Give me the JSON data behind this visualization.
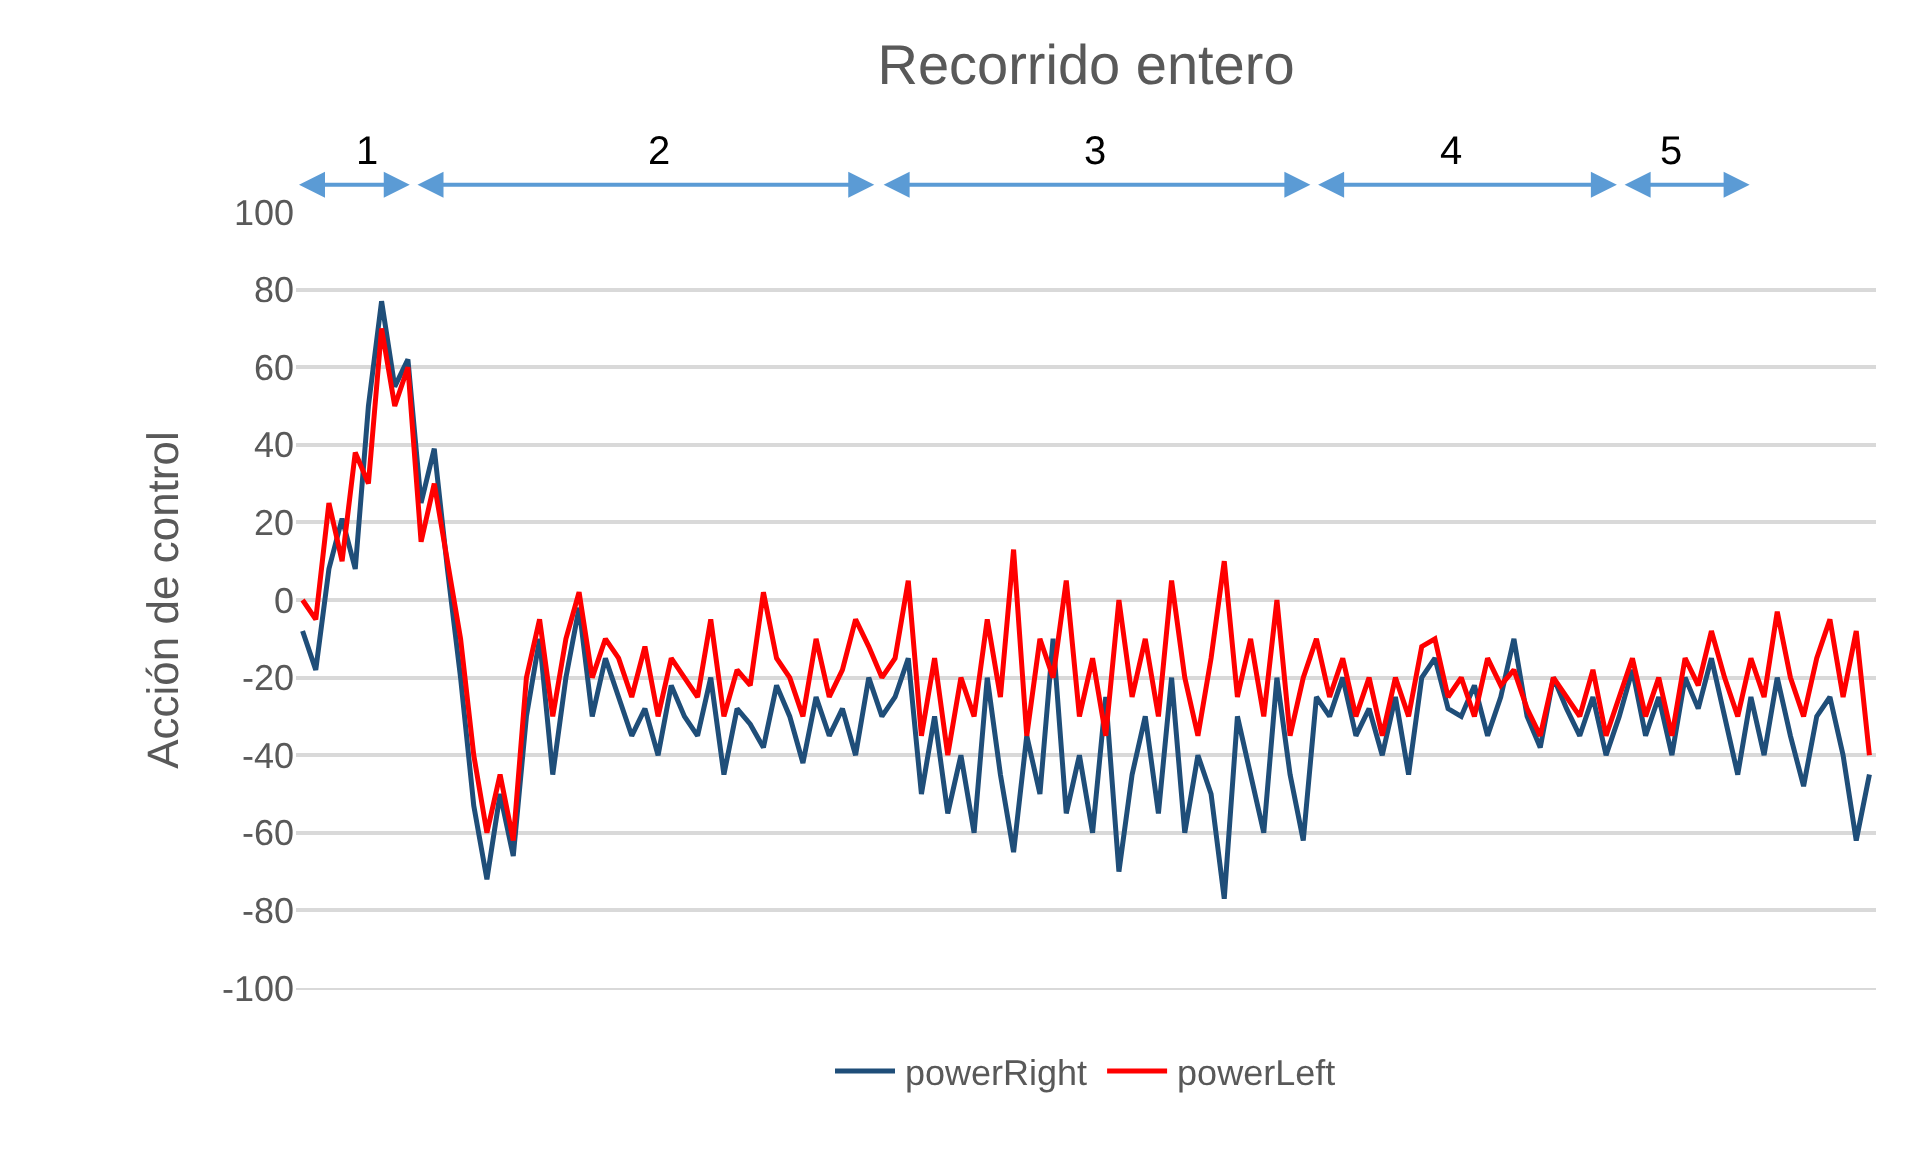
{
  "chart_data": {
    "type": "line",
    "title": "Recorrido entero",
    "ylabel": "Acción de control",
    "categories": [
      null,
      null,
      null,
      null,
      null,
      null,
      null,
      null,
      null,
      null,
      null,
      null,
      null,
      null,
      null,
      null,
      null,
      null,
      null,
      null,
      null,
      null,
      null,
      null,
      null,
      null,
      null,
      null,
      null,
      null,
      null,
      null,
      null,
      null,
      null,
      null,
      null,
      null,
      null,
      null,
      null,
      null,
      null,
      null,
      null,
      null,
      null,
      null,
      null,
      null,
      null,
      null,
      null,
      null,
      null,
      null,
      null,
      null,
      null,
      null,
      null,
      null,
      null,
      null,
      null,
      null,
      null,
      null,
      null,
      null,
      null,
      null,
      null,
      null,
      null,
      null,
      null,
      null,
      null,
      null,
      null,
      null,
      null,
      null,
      null,
      null,
      null,
      null,
      null,
      null,
      null,
      null,
      null,
      null,
      null,
      null,
      null,
      null,
      null,
      null,
      null,
      null,
      null,
      null,
      null,
      null,
      null,
      null,
      null,
      null,
      null,
      null,
      null,
      null,
      null,
      null,
      null,
      null,
      null,
      null
    ],
    "series": [
      {
        "name": "powerRight",
        "color": "#1f4e79",
        "values": [
          -8,
          -18,
          8,
          21,
          8,
          50,
          77,
          55,
          62,
          25,
          39,
          8,
          -20,
          -53,
          -72,
          -50,
          -66,
          -30,
          -10,
          -45,
          -20,
          -2,
          -30,
          -15,
          -25,
          -35,
          -28,
          -40,
          -22,
          -30,
          -35,
          -20,
          -45,
          -28,
          -32,
          -38,
          -22,
          -30,
          -42,
          -25,
          -35,
          -28,
          -40,
          -20,
          -30,
          -25,
          -15,
          -50,
          -30,
          -55,
          -40,
          -60,
          -20,
          -45,
          -65,
          -35,
          -50,
          -10,
          -55,
          -40,
          -60,
          -25,
          -70,
          -45,
          -30,
          -55,
          -20,
          -60,
          -40,
          -50,
          -77,
          -30,
          -45,
          -60,
          -20,
          -45,
          -62,
          -25,
          -30,
          -20,
          -35,
          -28,
          -40,
          -25,
          -45,
          -20,
          -15,
          -28,
          -30,
          -22,
          -35,
          -25,
          -10,
          -30,
          -38,
          -20,
          -28,
          -35,
          -25,
          -40,
          -30,
          -18,
          -35,
          -25,
          -40,
          -20,
          -28,
          -15,
          -30,
          -45,
          -25,
          -40,
          -20,
          -35,
          -48,
          -30,
          -25,
          -40,
          -62,
          -45
        ]
      },
      {
        "name": "powerLeft",
        "color": "#ff0000",
        "values": [
          0,
          -5,
          25,
          10,
          38,
          30,
          70,
          50,
          60,
          15,
          30,
          10,
          -10,
          -40,
          -60,
          -45,
          -62,
          -20,
          -5,
          -30,
          -10,
          2,
          -20,
          -10,
          -15,
          -25,
          -12,
          -30,
          -15,
          -20,
          -25,
          -5,
          -30,
          -18,
          -22,
          2,
          -15,
          -20,
          -30,
          -10,
          -25,
          -18,
          -5,
          -12,
          -20,
          -15,
          5,
          -35,
          -15,
          -40,
          -20,
          -30,
          -5,
          -25,
          13,
          -35,
          -10,
          -20,
          5,
          -30,
          -15,
          -35,
          0,
          -25,
          -10,
          -30,
          5,
          -20,
          -35,
          -15,
          10,
          -25,
          -10,
          -30,
          0,
          -35,
          -20,
          -10,
          -25,
          -15,
          -30,
          -20,
          -35,
          -20,
          -30,
          -12,
          -10,
          -25,
          -20,
          -30,
          -15,
          -22,
          -18,
          -28,
          -35,
          -20,
          -25,
          -30,
          -18,
          -35,
          -25,
          -15,
          -30,
          -20,
          -35,
          -15,
          -22,
          -8,
          -20,
          -30,
          -15,
          -25,
          -3,
          -20,
          -30,
          -15,
          -5,
          -25,
          -8,
          -40
        ]
      }
    ],
    "annotations": [
      "1",
      "2",
      "3",
      "4",
      "5"
    ],
    "ylim": [
      -100,
      100
    ],
    "yticks": [
      -100,
      -80,
      -60,
      -40,
      -20,
      0,
      20,
      40,
      60,
      80,
      100
    ],
    "grid": "y",
    "legend": "bottom",
    "marker": "none",
    "line_style": "solid"
  }
}
